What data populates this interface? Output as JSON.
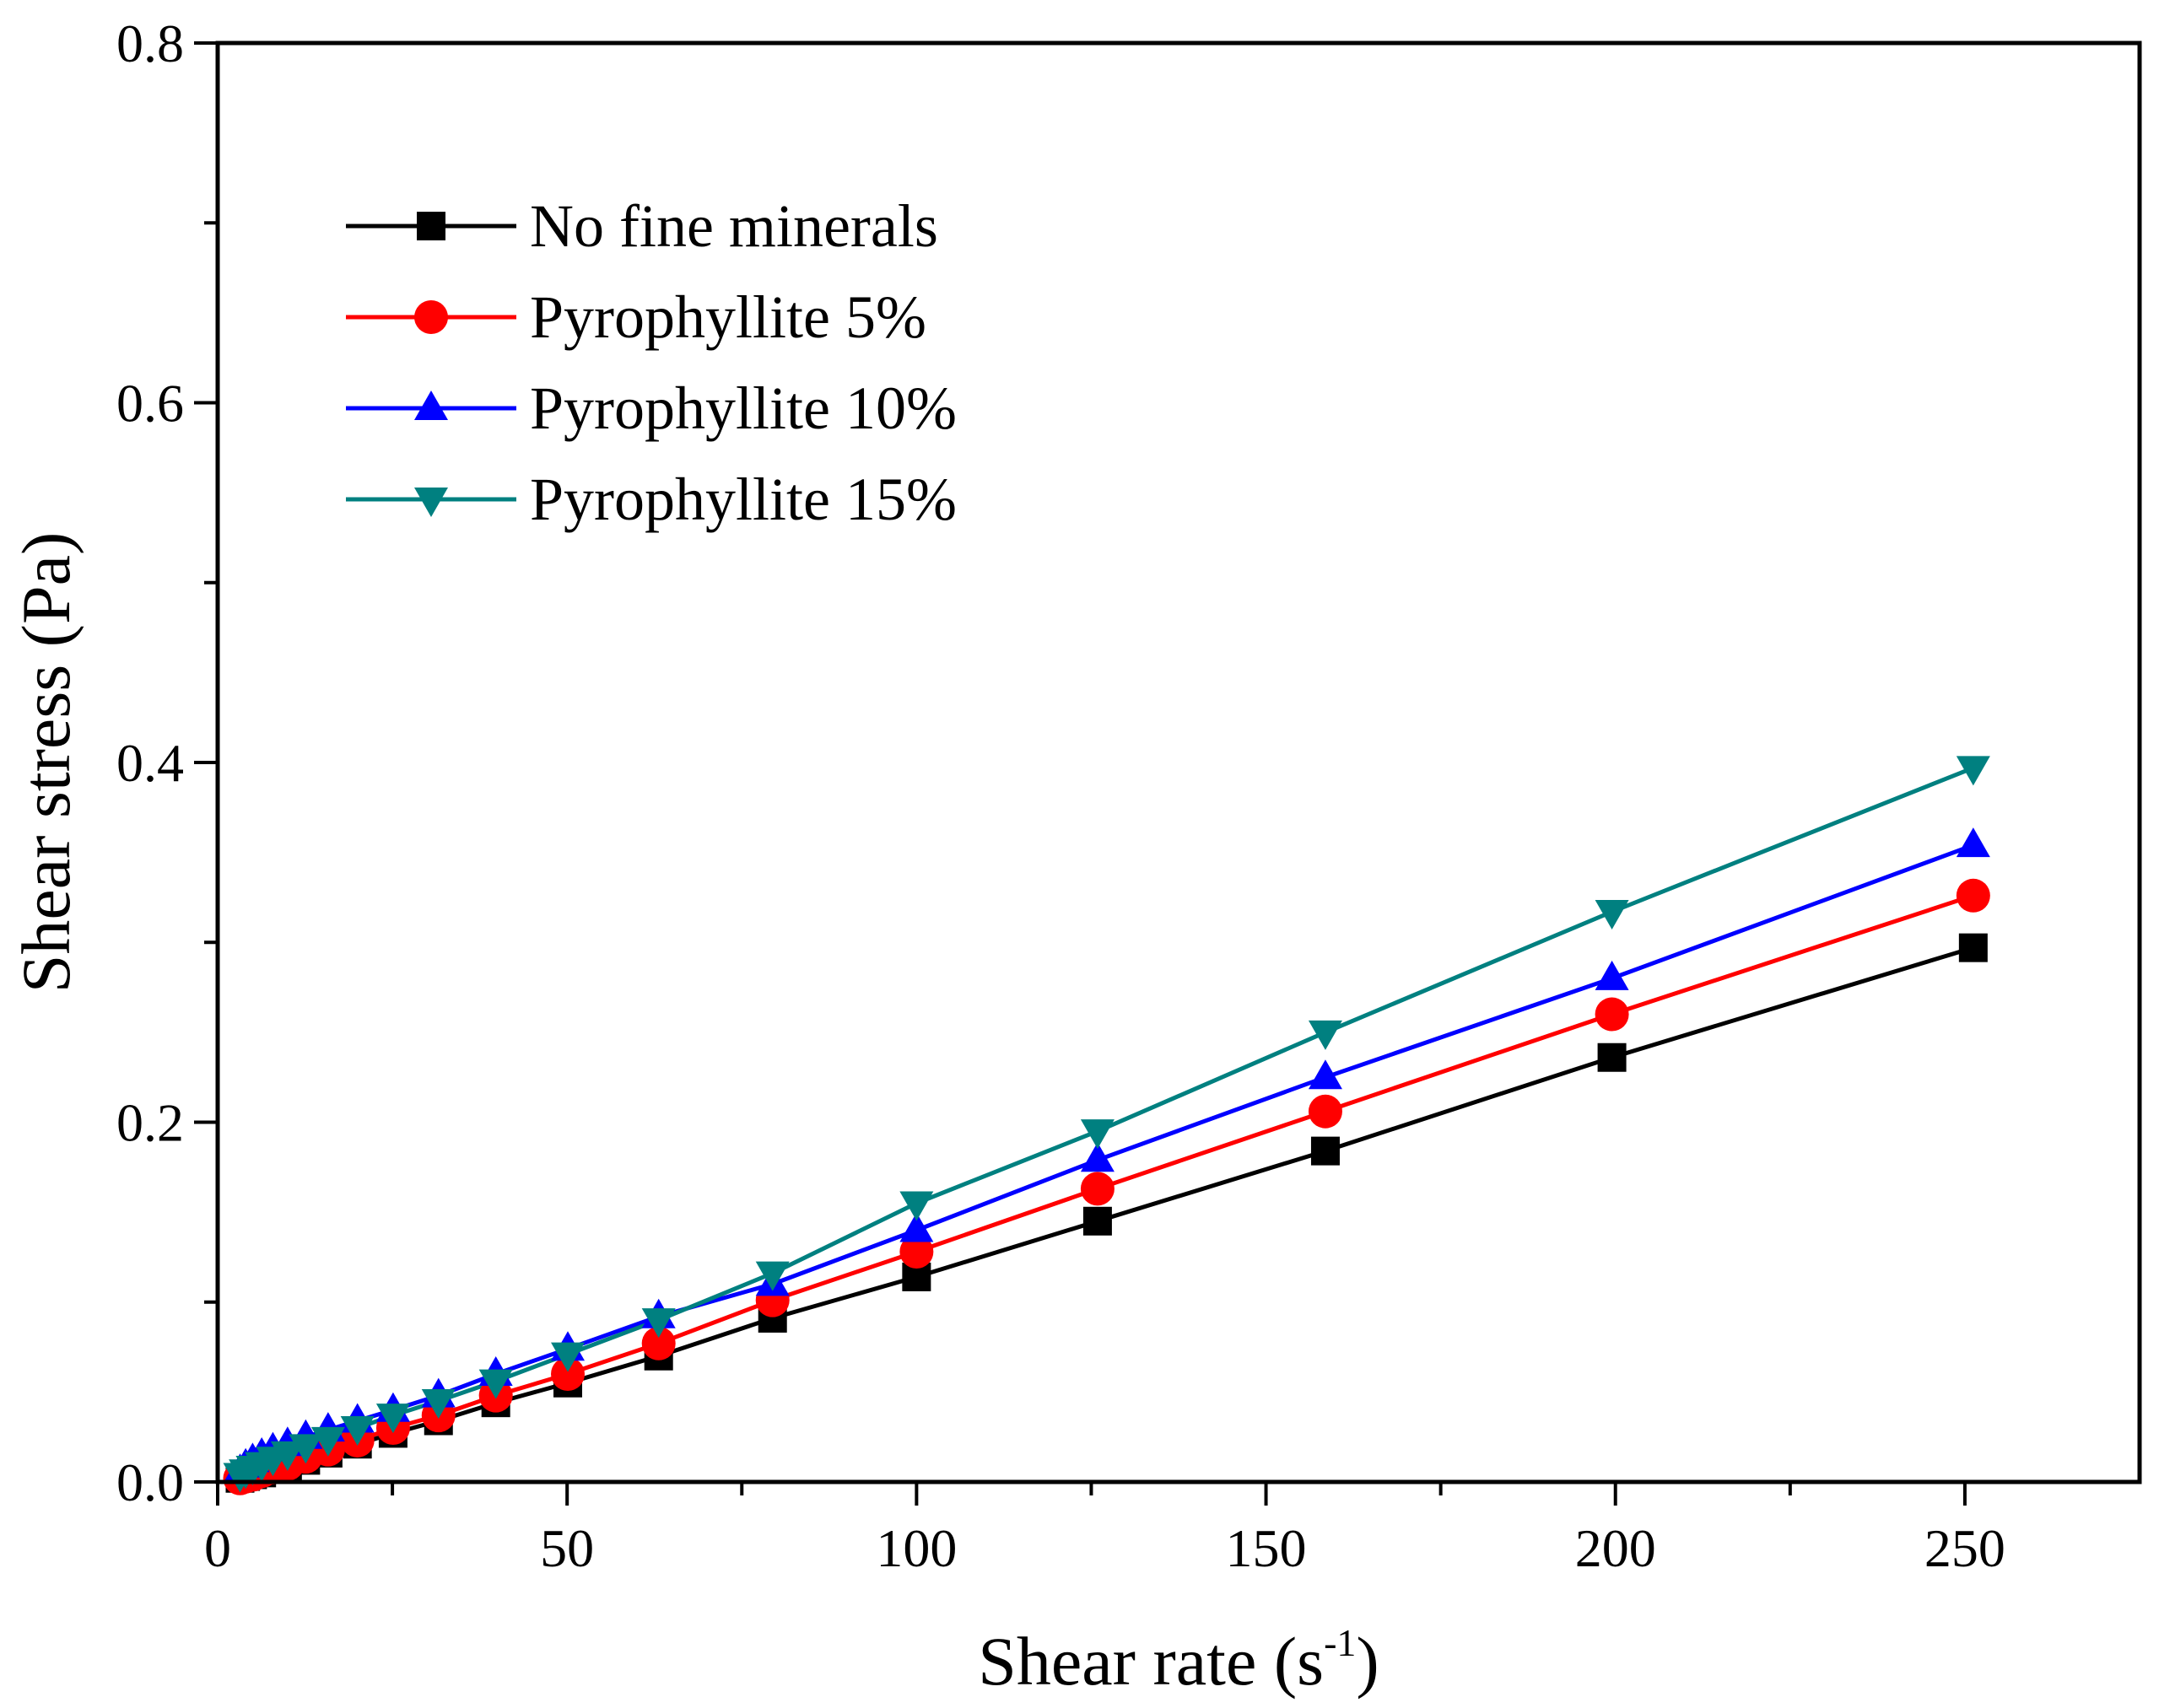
{
  "chart_data": {
    "type": "line",
    "title": "",
    "xlabel": "Shear rate (s",
    "xlabel_sup": "-1",
    "xlabel_close": ")",
    "ylabel": "Shear stress (Pa)",
    "xlim": [
      0,
      275
    ],
    "ylim": [
      0,
      0.8
    ],
    "x_ticks": [
      0,
      50,
      100,
      150,
      200,
      250
    ],
    "x_tick_labels": [
      "0",
      "50",
      "100",
      "150",
      "200",
      "250"
    ],
    "x_minor_ticks": [
      25,
      75,
      125,
      175,
      225
    ],
    "y_ticks": [
      0,
      0.2,
      0.4,
      0.6,
      0.8
    ],
    "y_tick_labels": [
      "0.0",
      "0.2",
      "0.4",
      "0.6",
      "0.8"
    ],
    "y_minor_ticks": [
      0.1,
      0.3,
      0.5,
      0.7
    ],
    "grid": false,
    "legend_position": "top-left",
    "x": [
      3.2,
      4,
      5,
      6.3,
      7.9,
      10,
      12.6,
      15.8,
      20,
      25.1,
      31.6,
      39.8,
      50.1,
      63.1,
      79.4,
      100,
      125.9,
      158.5,
      199.5,
      251.2
    ],
    "series": [
      {
        "name": "No fine minerals",
        "color": "#000000",
        "marker": "square",
        "values": [
          0.002,
          0.003,
          0.004,
          0.005,
          0.007,
          0.009,
          0.012,
          0.016,
          0.021,
          0.027,
          0.034,
          0.044,
          0.055,
          0.07,
          0.091,
          0.114,
          0.145,
          0.184,
          0.236,
          0.297
        ]
      },
      {
        "name": "Pyrophyllite 5%",
        "color": "#ff0000",
        "marker": "circle",
        "values": [
          0.002,
          0.003,
          0.004,
          0.006,
          0.008,
          0.01,
          0.014,
          0.018,
          0.023,
          0.03,
          0.037,
          0.048,
          0.06,
          0.077,
          0.101,
          0.128,
          0.163,
          0.206,
          0.26,
          0.326
        ]
      },
      {
        "name": "Pyrophyllite 10%",
        "color": "#0000ff",
        "marker": "triangle-up",
        "values": [
          0.006,
          0.009,
          0.012,
          0.015,
          0.018,
          0.021,
          0.025,
          0.029,
          0.034,
          0.04,
          0.048,
          0.06,
          0.074,
          0.092,
          0.11,
          0.14,
          0.179,
          0.225,
          0.28,
          0.354
        ]
      },
      {
        "name": "Pyrophyllite 15%",
        "color": "#008080",
        "marker": "triangle-down",
        "values": [
          0.004,
          0.006,
          0.008,
          0.01,
          0.013,
          0.016,
          0.02,
          0.024,
          0.03,
          0.037,
          0.045,
          0.056,
          0.071,
          0.09,
          0.116,
          0.155,
          0.195,
          0.25,
          0.317,
          0.397
        ]
      }
    ]
  }
}
